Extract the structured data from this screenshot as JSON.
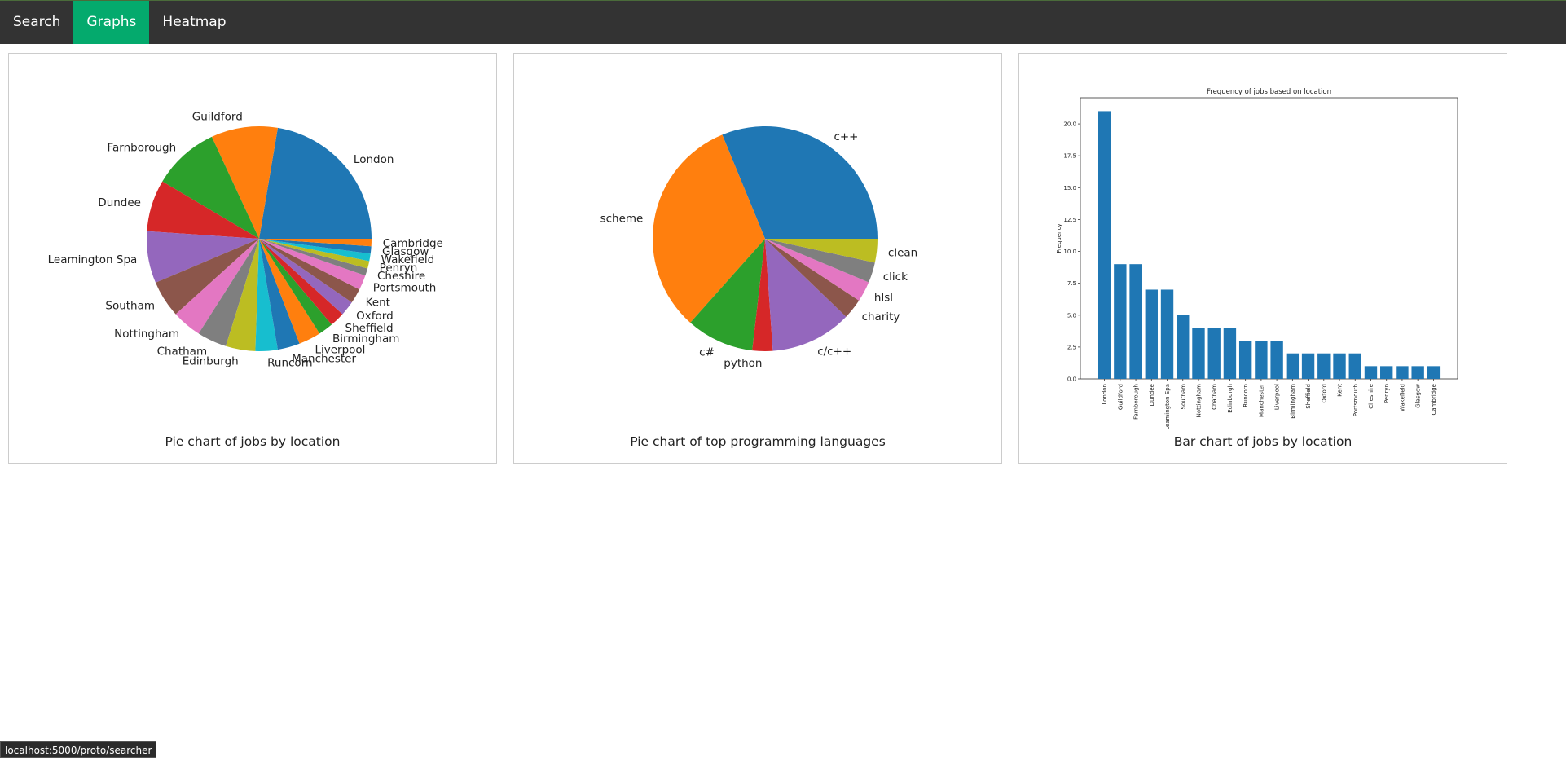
{
  "nav": {
    "tabs": [
      {
        "label": "Search",
        "active": false
      },
      {
        "label": "Graphs",
        "active": true
      },
      {
        "label": "Heatmap",
        "active": false
      }
    ]
  },
  "captions": {
    "location_pie": "Pie chart of jobs by location",
    "language_pie": "Pie chart of top programming languages",
    "location_bar": "Bar chart of jobs by location"
  },
  "status_bar": "localhost:5000/proto/searcher",
  "colors": {
    "palette": [
      "#1f77b4",
      "#ff7f0e",
      "#2ca02c",
      "#d62728",
      "#9467bd",
      "#8c564b",
      "#e377c2",
      "#7f7f7f",
      "#bcbd22",
      "#17becf"
    ],
    "active_tab": "#04AA6D",
    "nav_bg": "#333333"
  },
  "chart_data": [
    {
      "type": "pie",
      "title": "",
      "labels": [
        "London",
        "Guildford",
        "Farnborough",
        "Dundee",
        "Leamington Spa",
        "Southam",
        "Nottingham",
        "Chatham",
        "Edinburgh",
        "Runcorn",
        "Manchester",
        "Liverpool",
        "Birmingham",
        "Sheffield",
        "Oxford",
        "Kent",
        "Portsmouth",
        "Cheshire",
        "Penryn",
        "Wakefield",
        "Glasgow",
        "Cambridge"
      ],
      "values": [
        21,
        9,
        9,
        7,
        7,
        5,
        4,
        4,
        4,
        3,
        3,
        3,
        2,
        2,
        2,
        2,
        2,
        1,
        1,
        1,
        1,
        1
      ]
    },
    {
      "type": "pie",
      "title": "",
      "labels": [
        "c++",
        "scheme",
        "c#",
        "python",
        "c/c++",
        "charity",
        "hlsl",
        "click",
        "clean"
      ],
      "values": [
        32,
        33,
        10,
        3,
        12,
        3,
        3,
        3,
        3.5
      ]
    },
    {
      "type": "bar",
      "title": "Frequency of jobs based on location",
      "xlabel": "",
      "ylabel": "Frequency",
      "categories": [
        "London",
        "Guildford",
        "Farnborough",
        "Dundee",
        "Leamington Spa",
        "Southam",
        "Nottingham",
        "Chatham",
        "Edinburgh",
        "Runcorn",
        "Manchester",
        "Liverpool",
        "Birmingham",
        "Sheffield",
        "Oxford",
        "Kent",
        "Portsmouth",
        "Cheshire",
        "Penryn",
        "Wakefield",
        "Glasgow",
        "Cambridge"
      ],
      "values": [
        21,
        9,
        9,
        7,
        7,
        5,
        4,
        4,
        4,
        3,
        3,
        3,
        2,
        2,
        2,
        2,
        2,
        1,
        1,
        1,
        1,
        1
      ],
      "ylim": [
        0,
        22.05
      ],
      "yticks": [
        "0.0",
        "2.5",
        "5.0",
        "7.5",
        "10.0",
        "12.5",
        "15.0",
        "17.5",
        "20.0"
      ]
    }
  ]
}
